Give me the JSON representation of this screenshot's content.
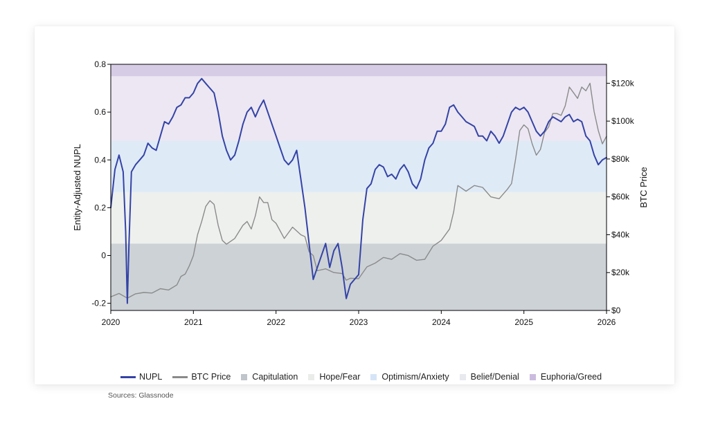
{
  "chart_data": {
    "type": "line",
    "xlabel": "",
    "ylabel": "Entity-Adjusted NUPL",
    "y2label": "BTC Price",
    "xlim": [
      2020,
      2026
    ],
    "ylim": [
      -0.23,
      0.8
    ],
    "y2lim": [
      0,
      130000
    ],
    "x_ticks": [
      "2020",
      "2021",
      "2022",
      "2023",
      "2024",
      "2025",
      "2026"
    ],
    "y_ticks": [
      "0.8",
      "0.6",
      "0.4",
      "0.2",
      "0",
      "-0.2"
    ],
    "y2_ticks": [
      "$120k",
      "$100k",
      "$80k",
      "$60k",
      "$40k",
      "$20k",
      "$0"
    ],
    "zones": [
      {
        "name": "Capitulation",
        "from": -0.23,
        "to": 0.05,
        "color": "#cdd2d6"
      },
      {
        "name": "Hope/Fear",
        "from": 0.05,
        "to": 0.265,
        "color": "#eef0ee"
      },
      {
        "name": "Optimism/Anxiety",
        "from": 0.265,
        "to": 0.48,
        "color": "#dfeaf7"
      },
      {
        "name": "Belief/Denial",
        "from": 0.48,
        "to": 0.75,
        "color": "#ece7f2"
      },
      {
        "name": "Euphoria/Greed",
        "from": 0.75,
        "to": 0.8,
        "color": "#d7cce6"
      }
    ],
    "series": [
      {
        "name": "NUPL",
        "axis": "left",
        "color": "#3443a6",
        "x": [
          2020.0,
          2020.05,
          2020.1,
          2020.15,
          2020.18,
          2020.2,
          2020.22,
          2020.25,
          2020.3,
          2020.35,
          2020.4,
          2020.45,
          2020.5,
          2020.55,
          2020.6,
          2020.65,
          2020.7,
          2020.75,
          2020.8,
          2020.85,
          2020.9,
          2020.95,
          2021.0,
          2021.05,
          2021.1,
          2021.15,
          2021.2,
          2021.25,
          2021.3,
          2021.35,
          2021.4,
          2021.45,
          2021.5,
          2021.55,
          2021.6,
          2021.65,
          2021.7,
          2021.75,
          2021.8,
          2021.85,
          2021.9,
          2021.95,
          2022.0,
          2022.05,
          2022.1,
          2022.15,
          2022.2,
          2022.25,
          2022.3,
          2022.35,
          2022.4,
          2022.45,
          2022.5,
          2022.55,
          2022.6,
          2022.65,
          2022.7,
          2022.75,
          2022.8,
          2022.85,
          2022.9,
          2022.95,
          2023.0,
          2023.05,
          2023.1,
          2023.15,
          2023.2,
          2023.25,
          2023.3,
          2023.35,
          2023.4,
          2023.45,
          2023.5,
          2023.55,
          2023.6,
          2023.65,
          2023.7,
          2023.75,
          2023.8,
          2023.85,
          2023.9,
          2023.95,
          2024.0,
          2024.05,
          2024.1,
          2024.15,
          2024.2,
          2024.25,
          2024.3,
          2024.35,
          2024.4,
          2024.45,
          2024.5,
          2024.55,
          2024.6,
          2024.65,
          2024.7,
          2024.75,
          2024.8,
          2024.85,
          2024.9,
          2024.95,
          2025.0,
          2025.05,
          2025.1,
          2025.15,
          2025.2,
          2025.25,
          2025.3,
          2025.35,
          2025.4,
          2025.45,
          2025.5,
          2025.55,
          2025.6,
          2025.65,
          2025.7,
          2025.75,
          2025.8,
          2025.85,
          2025.9,
          2025.95,
          2026.0
        ],
        "values": [
          0.2,
          0.36,
          0.42,
          0.35,
          0.1,
          -0.2,
          0.05,
          0.35,
          0.38,
          0.4,
          0.42,
          0.47,
          0.45,
          0.44,
          0.5,
          0.56,
          0.55,
          0.58,
          0.62,
          0.63,
          0.66,
          0.66,
          0.68,
          0.72,
          0.74,
          0.72,
          0.7,
          0.68,
          0.6,
          0.5,
          0.44,
          0.4,
          0.42,
          0.48,
          0.55,
          0.6,
          0.62,
          0.58,
          0.62,
          0.65,
          0.6,
          0.55,
          0.5,
          0.45,
          0.4,
          0.38,
          0.4,
          0.44,
          0.32,
          0.2,
          0.05,
          -0.1,
          -0.05,
          0.0,
          0.05,
          -0.05,
          0.02,
          0.05,
          -0.05,
          -0.18,
          -0.12,
          -0.1,
          -0.08,
          0.15,
          0.28,
          0.3,
          0.36,
          0.38,
          0.37,
          0.33,
          0.34,
          0.32,
          0.36,
          0.38,
          0.35,
          0.3,
          0.28,
          0.32,
          0.4,
          0.45,
          0.47,
          0.52,
          0.52,
          0.55,
          0.62,
          0.63,
          0.6,
          0.58,
          0.56,
          0.55,
          0.54,
          0.5,
          0.5,
          0.48,
          0.52,
          0.5,
          0.47,
          0.5,
          0.55,
          0.6,
          0.62,
          0.61,
          0.62,
          0.6,
          0.56,
          0.52,
          0.5,
          0.52,
          0.56,
          0.58,
          0.57,
          0.56,
          0.58,
          0.59,
          0.56,
          0.57,
          0.56,
          0.5,
          0.48,
          0.42,
          0.38,
          0.4,
          0.41
        ]
      },
      {
        "name": "BTC Price",
        "axis": "right",
        "color": "#8a8a8a",
        "x": [
          2020.0,
          2020.1,
          2020.2,
          2020.3,
          2020.4,
          2020.5,
          2020.6,
          2020.7,
          2020.8,
          2020.85,
          2020.9,
          2020.95,
          2021.0,
          2021.05,
          2021.1,
          2021.15,
          2021.2,
          2021.25,
          2021.3,
          2021.35,
          2021.4,
          2021.5,
          2021.6,
          2021.65,
          2021.7,
          2021.75,
          2021.8,
          2021.85,
          2021.9,
          2021.95,
          2022.0,
          2022.1,
          2022.2,
          2022.3,
          2022.35,
          2022.4,
          2022.45,
          2022.5,
          2022.6,
          2022.7,
          2022.8,
          2022.85,
          2022.9,
          2023.0,
          2023.1,
          2023.2,
          2023.3,
          2023.4,
          2023.5,
          2023.6,
          2023.7,
          2023.8,
          2023.9,
          2024.0,
          2024.1,
          2024.15,
          2024.2,
          2024.3,
          2024.4,
          2024.5,
          2024.6,
          2024.7,
          2024.8,
          2024.85,
          2024.9,
          2024.95,
          2025.0,
          2025.05,
          2025.1,
          2025.15,
          2025.2,
          2025.25,
          2025.3,
          2025.35,
          2025.4,
          2025.45,
          2025.5,
          2025.55,
          2025.6,
          2025.65,
          2025.7,
          2025.75,
          2025.8,
          2025.85,
          2025.9,
          2025.95,
          2026.0
        ],
        "values": [
          7200,
          9000,
          6500,
          8800,
          9500,
          9200,
          11500,
          10800,
          13500,
          18000,
          19200,
          23500,
          29000,
          40000,
          47000,
          55000,
          58000,
          56000,
          45000,
          37000,
          35000,
          38000,
          45000,
          47000,
          43000,
          50000,
          60000,
          57000,
          57000,
          48000,
          46000,
          38000,
          44000,
          40000,
          39000,
          31000,
          29000,
          21000,
          22000,
          20000,
          19500,
          16000,
          17000,
          16800,
          23000,
          25000,
          28000,
          27000,
          30000,
          29000,
          26500,
          27000,
          34000,
          37000,
          43000,
          52000,
          66000,
          63000,
          66000,
          65000,
          60000,
          59000,
          64000,
          67000,
          80000,
          95000,
          98000,
          96000,
          88000,
          82000,
          85000,
          94000,
          97000,
          104000,
          104000,
          103000,
          108000,
          118000,
          115000,
          112000,
          118000,
          116000,
          120000,
          105000,
          95000,
          88000,
          92000
        ]
      }
    ]
  },
  "legend": {
    "items": [
      "NUPL",
      "BTC Price",
      "Capitulation",
      "Hope/Fear",
      "Optimism/Anxiety",
      "Belief/Denial",
      "Euphoria/Greed"
    ]
  },
  "source": "Sources: Glassnode"
}
